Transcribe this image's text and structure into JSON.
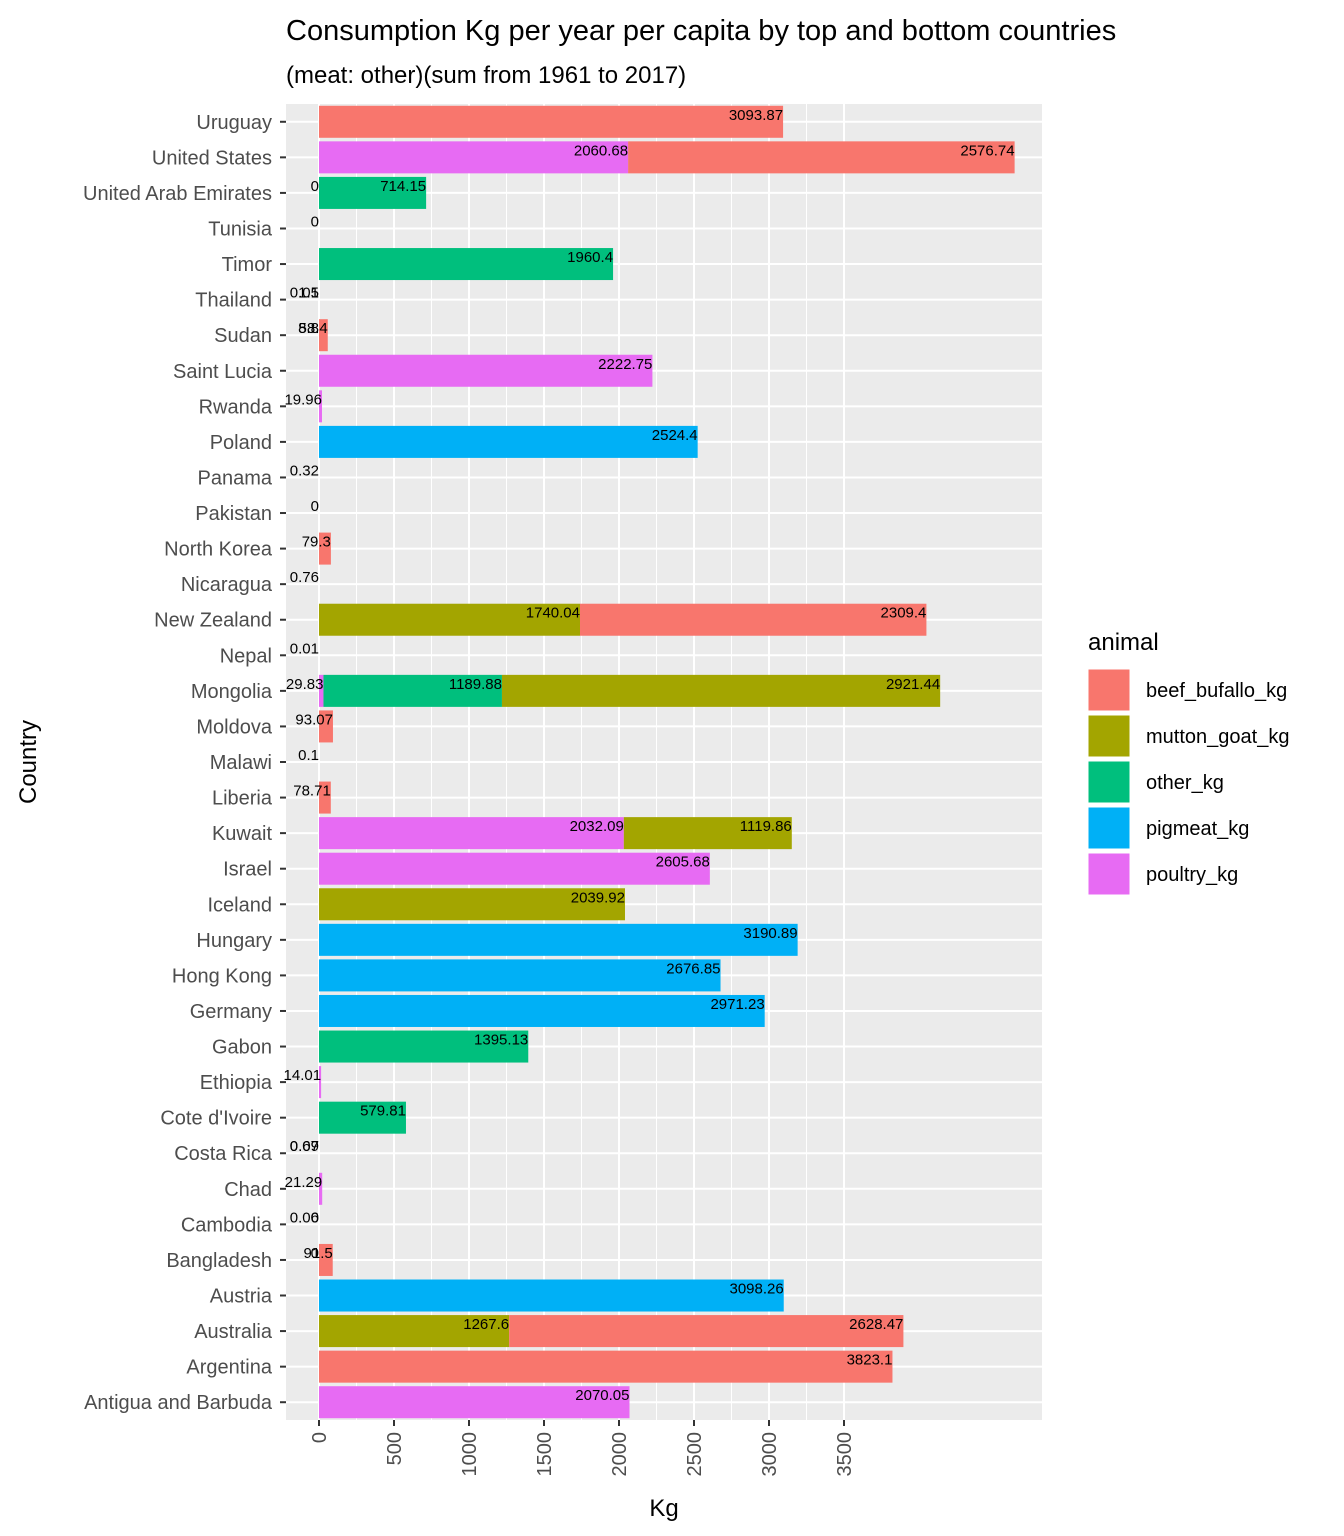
{
  "chart_data": {
    "type": "bar",
    "orientation": "horizontal",
    "stacked": true,
    "title": "Consumption Kg per year per capita by top and bottom countries",
    "subtitle": "(meat: other)(sum from 1961 to 2017)",
    "xlabel": "Kg",
    "ylabel": "Country",
    "xlim": [
      -220,
      4820
    ],
    "x_ticks": [
      "0",
      "500",
      "1000",
      "1500",
      "2000",
      "2500",
      "3000",
      "3500"
    ],
    "grid": true,
    "legend": {
      "title": "animal",
      "position": "right",
      "entries": [
        "beef_bufallo_kg",
        "mutton_goat_kg",
        "other_kg",
        "pigmeat_kg",
        "poultry_kg"
      ]
    },
    "colors": {
      "beef_bufallo_kg": "#F8766D",
      "mutton_goat_kg": "#A3A500",
      "other_kg": "#00BF7D",
      "pigmeat_kg": "#00B0F6",
      "poultry_kg": "#E76BF3",
      "panel_bg": "#EBEBEB",
      "grid": "#FFFFFF"
    },
    "categories": [
      "Uruguay",
      "United States",
      "United Arab Emirates",
      "Tunisia",
      "Timor",
      "Thailand",
      "Sudan",
      "Saint Lucia",
      "Rwanda",
      "Poland",
      "Panama",
      "Pakistan",
      "North Korea",
      "Nicaragua",
      "New Zealand",
      "Nepal",
      "Mongolia",
      "Moldova",
      "Malawi",
      "Liberia",
      "Kuwait",
      "Israel",
      "Iceland",
      "Hungary",
      "Hong Kong",
      "Germany",
      "Gabon",
      "Ethiopia",
      "Cote d'Ivoire",
      "Costa Rica",
      "Chad",
      "Cambodia",
      "Bangladesh",
      "Austria",
      "Australia",
      "Argentina",
      "Antigua and Barbuda"
    ],
    "bars": [
      {
        "country": "Uruguay",
        "segments": [
          {
            "animal": "beef_bufallo_kg",
            "value": 3093.87,
            "label": "3093.87"
          }
        ]
      },
      {
        "country": "United States",
        "segments": [
          {
            "animal": "poultry_kg",
            "value": 2060.68,
            "label": "2060.68"
          },
          {
            "animal": "beef_bufallo_kg",
            "value": 2576.74,
            "label": "2576.74"
          }
        ]
      },
      {
        "country": "United Arab Emirates",
        "segments": [
          {
            "animal": "other_kg",
            "value": 714.15,
            "label": "714.15"
          }
        ],
        "extra_labels": [
          "0"
        ]
      },
      {
        "country": "Tunisia",
        "segments": [],
        "extra_labels": [
          "0"
        ]
      },
      {
        "country": "Timor",
        "segments": [
          {
            "animal": "other_kg",
            "value": 1960.4,
            "label": "1960.4"
          }
        ]
      },
      {
        "country": "Thailand",
        "segments": [],
        "extra_labels": [
          "0.05",
          "1.1"
        ]
      },
      {
        "country": "Sudan",
        "segments": [
          {
            "animal": "beef_bufallo_kg",
            "value": 58.4,
            "label": "58.4"
          }
        ],
        "extra_labels": [
          "8.8"
        ]
      },
      {
        "country": "Saint Lucia",
        "segments": [
          {
            "animal": "poultry_kg",
            "value": 2222.75,
            "label": "2222.75"
          }
        ]
      },
      {
        "country": "Rwanda",
        "segments": [
          {
            "animal": "poultry_kg",
            "value": 19.96,
            "label": "19.96"
          }
        ]
      },
      {
        "country": "Poland",
        "segments": [
          {
            "animal": "pigmeat_kg",
            "value": 2524.4,
            "label": "2524.4"
          }
        ]
      },
      {
        "country": "Panama",
        "segments": [],
        "extra_labels": [
          "0.32"
        ]
      },
      {
        "country": "Pakistan",
        "segments": [],
        "extra_labels": [
          "0"
        ]
      },
      {
        "country": "North Korea",
        "segments": [
          {
            "animal": "beef_bufallo_kg",
            "value": 79.3,
            "label": "79.3"
          }
        ]
      },
      {
        "country": "Nicaragua",
        "segments": [],
        "extra_labels": [
          "0.76"
        ]
      },
      {
        "country": "New Zealand",
        "segments": [
          {
            "animal": "mutton_goat_kg",
            "value": 1740.04,
            "label": "1740.04"
          },
          {
            "animal": "beef_bufallo_kg",
            "value": 2309.4,
            "label": "2309.4"
          }
        ]
      },
      {
        "country": "Nepal",
        "segments": [],
        "extra_labels": [
          "0.01"
        ]
      },
      {
        "country": "Mongolia",
        "segments": [
          {
            "animal": "poultry_kg",
            "value": 29.83,
            "label": "29.83"
          },
          {
            "animal": "other_kg",
            "value": 1189.88,
            "label": "1189.88"
          },
          {
            "animal": "mutton_goat_kg",
            "value": 2921.44,
            "label": "2921.44"
          }
        ]
      },
      {
        "country": "Moldova",
        "segments": [
          {
            "animal": "beef_bufallo_kg",
            "value": 93.07,
            "label": "93.07"
          }
        ]
      },
      {
        "country": "Malawi",
        "segments": [],
        "extra_labels": [
          "0.1"
        ]
      },
      {
        "country": "Liberia",
        "segments": [
          {
            "animal": "beef_bufallo_kg",
            "value": 78.71,
            "label": "78.71"
          }
        ]
      },
      {
        "country": "Kuwait",
        "segments": [
          {
            "animal": "poultry_kg",
            "value": 2032.09,
            "label": "2032.09"
          },
          {
            "animal": "mutton_goat_kg",
            "value": 1119.86,
            "label": "1119.86"
          }
        ]
      },
      {
        "country": "Israel",
        "segments": [
          {
            "animal": "poultry_kg",
            "value": 2605.68,
            "label": "2605.68"
          }
        ]
      },
      {
        "country": "Iceland",
        "segments": [
          {
            "animal": "mutton_goat_kg",
            "value": 2039.92,
            "label": "2039.92"
          }
        ]
      },
      {
        "country": "Hungary",
        "segments": [
          {
            "animal": "pigmeat_kg",
            "value": 3190.89,
            "label": "3190.89"
          }
        ]
      },
      {
        "country": "Hong Kong",
        "segments": [
          {
            "animal": "pigmeat_kg",
            "value": 2676.85,
            "label": "2676.85"
          }
        ]
      },
      {
        "country": "Germany",
        "segments": [
          {
            "animal": "pigmeat_kg",
            "value": 2971.23,
            "label": "2971.23"
          }
        ]
      },
      {
        "country": "Gabon",
        "segments": [
          {
            "animal": "other_kg",
            "value": 1395.13,
            "label": "1395.13"
          }
        ]
      },
      {
        "country": "Ethiopia",
        "segments": [
          {
            "animal": "poultry_kg",
            "value": 14.01,
            "label": "14.01"
          }
        ]
      },
      {
        "country": "Cote d'Ivoire",
        "segments": [
          {
            "animal": "other_kg",
            "value": 579.81,
            "label": "579.81"
          }
        ]
      },
      {
        "country": "Costa Rica",
        "segments": [],
        "extra_labels": [
          "0.07",
          "0.69"
        ]
      },
      {
        "country": "Chad",
        "segments": [
          {
            "animal": "poultry_kg",
            "value": 21.29,
            "label": "21.29"
          }
        ]
      },
      {
        "country": "Cambodia",
        "segments": [],
        "extra_labels": [
          "0.06",
          "0"
        ]
      },
      {
        "country": "Bangladesh",
        "segments": [
          {
            "animal": "beef_bufallo_kg",
            "value": 91.5,
            "label": "91.5"
          }
        ],
        "extra_labels": [
          "0"
        ]
      },
      {
        "country": "Austria",
        "segments": [
          {
            "animal": "pigmeat_kg",
            "value": 3098.26,
            "label": "3098.26"
          }
        ]
      },
      {
        "country": "Australia",
        "segments": [
          {
            "animal": "mutton_goat_kg",
            "value": 1267.6,
            "label": "1267.6"
          },
          {
            "animal": "beef_bufallo_kg",
            "value": 2628.47,
            "label": "2628.47"
          }
        ]
      },
      {
        "country": "Argentina",
        "segments": [
          {
            "animal": "beef_bufallo_kg",
            "value": 3823.1,
            "label": "3823.1"
          }
        ]
      },
      {
        "country": "Antigua and Barbuda",
        "segments": [
          {
            "animal": "poultry_kg",
            "value": 2070.05,
            "label": "2070.05"
          }
        ]
      }
    ]
  }
}
